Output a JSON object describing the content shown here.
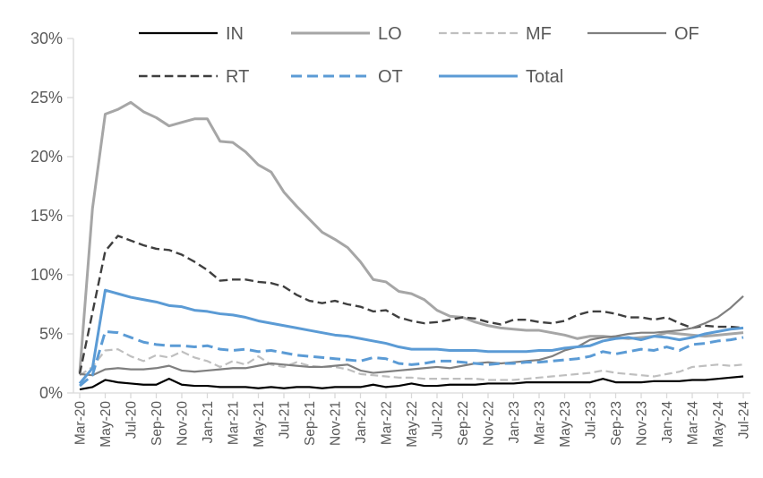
{
  "axis": {
    "text_color": "#595959",
    "line_color": "#D9D9D9",
    "background": "#FFFFFF"
  },
  "chart_data": {
    "type": "line",
    "title": "",
    "xlabel": "",
    "ylabel": "",
    "grid": "off",
    "legend_position": "top",
    "ylim": [
      0,
      30
    ],
    "ytick_values": [
      0,
      5,
      10,
      15,
      20,
      25,
      30
    ],
    "ytick_labels": [
      "0%",
      "5%",
      "10%",
      "15%",
      "20%",
      "25%",
      "30%"
    ],
    "x_tick_every": 2,
    "x": [
      "Mar-20",
      "Apr-20",
      "May-20",
      "Jun-20",
      "Jul-20",
      "Aug-20",
      "Sep-20",
      "Oct-20",
      "Nov-20",
      "Dec-20",
      "Jan-21",
      "Feb-21",
      "Mar-21",
      "Apr-21",
      "May-21",
      "Jun-21",
      "Jul-21",
      "Aug-21",
      "Sep-21",
      "Oct-21",
      "Nov-21",
      "Dec-21",
      "Jan-22",
      "Feb-22",
      "Mar-22",
      "Apr-22",
      "May-22",
      "Jun-22",
      "Jul-22",
      "Aug-22",
      "Sep-22",
      "Oct-22",
      "Nov-22",
      "Dec-22",
      "Jan-23",
      "Feb-23",
      "Mar-23",
      "Apr-23",
      "May-23",
      "Jun-23",
      "Jul-23",
      "Aug-23",
      "Sep-23",
      "Oct-23",
      "Nov-23",
      "Dec-23",
      "Jan-24",
      "Feb-24",
      "Mar-24",
      "Apr-24",
      "May-24",
      "Jun-24",
      "Jul-24"
    ],
    "x_tick_labels": [
      "Mar-20",
      "May-20",
      "Jul-20",
      "Sep-20",
      "Nov-20",
      "Jan-21",
      "Mar-21",
      "May-21",
      "Jul-21",
      "Sep-21",
      "Nov-21",
      "Jan-22",
      "Mar-22",
      "May-22",
      "Jul-22",
      "Sep-22",
      "Nov-22",
      "Jan-23",
      "Mar-23",
      "May-23",
      "Jul-23",
      "Sep-23",
      "Nov-23",
      "Jan-24",
      "Mar-24",
      "May-24",
      "Jul-24"
    ],
    "series": [
      {
        "name": "IN",
        "color": "#000000",
        "style": "solid",
        "width": 2.2,
        "legend_row": 0,
        "legend_col": 0,
        "values": [
          0.3,
          0.5,
          1.1,
          0.9,
          0.8,
          0.7,
          0.7,
          1.2,
          0.7,
          0.6,
          0.6,
          0.5,
          0.5,
          0.5,
          0.4,
          0.5,
          0.4,
          0.5,
          0.5,
          0.4,
          0.5,
          0.5,
          0.5,
          0.7,
          0.5,
          0.6,
          0.8,
          0.6,
          0.6,
          0.7,
          0.7,
          0.7,
          0.8,
          0.8,
          0.8,
          0.9,
          0.9,
          0.9,
          0.9,
          0.9,
          0.9,
          1.2,
          0.9,
          0.9,
          0.9,
          1.0,
          1.0,
          1.0,
          1.1,
          1.1,
          1.2,
          1.3,
          1.4
        ]
      },
      {
        "name": "LO",
        "color": "#A6A6A6",
        "style": "solid",
        "width": 3,
        "legend_row": 0,
        "legend_col": 1,
        "values": [
          1.7,
          15.6,
          23.6,
          24.0,
          24.6,
          23.8,
          23.3,
          22.6,
          22.9,
          23.2,
          23.2,
          21.3,
          21.2,
          20.4,
          19.3,
          18.7,
          17.0,
          15.8,
          14.7,
          13.6,
          13.0,
          12.3,
          11.1,
          9.6,
          9.4,
          8.6,
          8.4,
          7.9,
          7.0,
          6.5,
          6.4,
          6.0,
          5.7,
          5.5,
          5.4,
          5.3,
          5.3,
          5.1,
          4.9,
          4.6,
          4.8,
          4.8,
          4.7,
          4.6,
          4.7,
          4.8,
          5.1,
          5.0,
          4.9,
          4.8,
          4.9,
          5.0,
          5.1
        ]
      },
      {
        "name": "MF",
        "color": "#BFBFBF",
        "style": "dashed",
        "width": 2.2,
        "legend_row": 0,
        "legend_col": 2,
        "values": [
          1.5,
          2.2,
          3.6,
          3.7,
          3.1,
          2.7,
          3.2,
          3.0,
          3.5,
          3.0,
          2.7,
          2.2,
          2.7,
          2.4,
          3.1,
          2.4,
          2.2,
          2.6,
          2.3,
          2.2,
          2.2,
          2.0,
          1.6,
          1.5,
          1.4,
          1.3,
          1.3,
          1.2,
          1.2,
          1.2,
          1.2,
          1.2,
          1.1,
          1.1,
          1.1,
          1.2,
          1.3,
          1.4,
          1.5,
          1.6,
          1.7,
          1.9,
          1.7,
          1.6,
          1.5,
          1.4,
          1.6,
          1.8,
          2.2,
          2.3,
          2.4,
          2.3,
          2.4
        ]
      },
      {
        "name": "OF",
        "color": "#7F7F7F",
        "style": "solid",
        "width": 2.2,
        "legend_row": 0,
        "legend_col": 3,
        "values": [
          1.6,
          1.5,
          2.0,
          2.1,
          2.0,
          2.0,
          2.1,
          2.3,
          1.9,
          1.8,
          1.9,
          2.0,
          2.1,
          2.1,
          2.3,
          2.5,
          2.4,
          2.3,
          2.2,
          2.2,
          2.3,
          2.4,
          1.9,
          1.7,
          1.8,
          1.9,
          2.0,
          2.1,
          2.2,
          2.1,
          2.3,
          2.5,
          2.6,
          2.5,
          2.6,
          2.7,
          2.8,
          3.1,
          3.6,
          3.9,
          4.5,
          4.7,
          4.8,
          5.0,
          5.1,
          5.1,
          5.2,
          5.3,
          5.5,
          5.9,
          6.4,
          7.2,
          8.2
        ]
      },
      {
        "name": "RT",
        "color": "#3F3F3F",
        "style": "dashed",
        "width": 2.4,
        "legend_row": 1,
        "legend_col": 0,
        "values": [
          1.6,
          6.8,
          12.0,
          13.3,
          12.9,
          12.5,
          12.2,
          12.1,
          11.7,
          11.1,
          10.4,
          9.5,
          9.6,
          9.6,
          9.4,
          9.3,
          9.0,
          8.3,
          7.8,
          7.6,
          7.8,
          7.5,
          7.3,
          6.9,
          7.0,
          6.4,
          6.1,
          5.9,
          6.0,
          6.2,
          6.4,
          6.3,
          6.0,
          5.8,
          6.2,
          6.2,
          6.0,
          5.9,
          6.1,
          6.6,
          6.9,
          6.9,
          6.7,
          6.4,
          6.4,
          6.2,
          6.4,
          5.9,
          5.5,
          5.7,
          5.6,
          5.6,
          5.5
        ]
      },
      {
        "name": "OT",
        "color": "#5B9BD5",
        "style": "dashed",
        "width": 3,
        "legend_row": 1,
        "legend_col": 1,
        "values": [
          0.6,
          1.5,
          5.2,
          5.1,
          4.7,
          4.3,
          4.1,
          4.0,
          4.0,
          3.9,
          4.0,
          3.7,
          3.6,
          3.7,
          3.5,
          3.6,
          3.4,
          3.2,
          3.1,
          3.0,
          2.9,
          2.8,
          2.7,
          3.0,
          2.9,
          2.5,
          2.4,
          2.5,
          2.7,
          2.7,
          2.6,
          2.5,
          2.4,
          2.5,
          2.5,
          2.6,
          2.6,
          2.7,
          2.8,
          2.9,
          3.1,
          3.5,
          3.3,
          3.5,
          3.7,
          3.6,
          3.9,
          3.6,
          4.1,
          4.2,
          4.4,
          4.5,
          4.7
        ]
      },
      {
        "name": "Total",
        "color": "#5B9BD5",
        "style": "solid",
        "width": 3,
        "legend_row": 1,
        "legend_col": 2,
        "values": [
          0.8,
          2.1,
          8.7,
          8.4,
          8.1,
          7.9,
          7.7,
          7.4,
          7.3,
          7.0,
          6.9,
          6.7,
          6.6,
          6.4,
          6.1,
          5.9,
          5.7,
          5.5,
          5.3,
          5.1,
          4.9,
          4.8,
          4.6,
          4.4,
          4.2,
          3.9,
          3.7,
          3.7,
          3.7,
          3.6,
          3.6,
          3.6,
          3.5,
          3.5,
          3.5,
          3.5,
          3.6,
          3.6,
          3.8,
          3.9,
          4.0,
          4.4,
          4.6,
          4.7,
          4.5,
          4.8,
          4.7,
          4.5,
          4.7,
          5.0,
          5.2,
          5.4,
          5.5
        ]
      }
    ],
    "draw_order": [
      "LO",
      "MF",
      "RT",
      "IN",
      "OF",
      "OT",
      "Total"
    ]
  }
}
